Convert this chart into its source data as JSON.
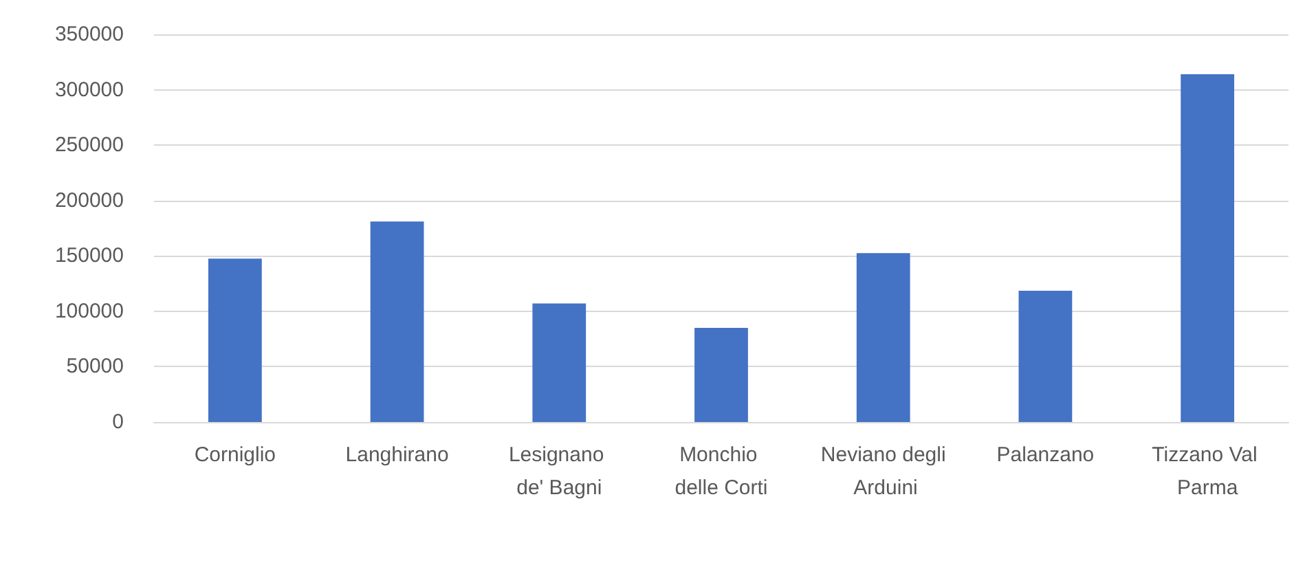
{
  "chart_data": {
    "type": "bar",
    "categories": [
      "Corniglio",
      "Langhirano",
      "Lesignano de' Bagni",
      "Monchio delle Corti",
      "Neviano degli Arduini",
      "Palanzano",
      "Tizzano Val Parma"
    ],
    "values": [
      147500,
      181000,
      107000,
      85000,
      152500,
      118500,
      314000
    ],
    "color": "#4472c4",
    "ylim": [
      0,
      350000
    ],
    "yticks": [
      0,
      50000,
      100000,
      150000,
      200000,
      250000,
      300000,
      350000
    ],
    "grid": "y"
  }
}
